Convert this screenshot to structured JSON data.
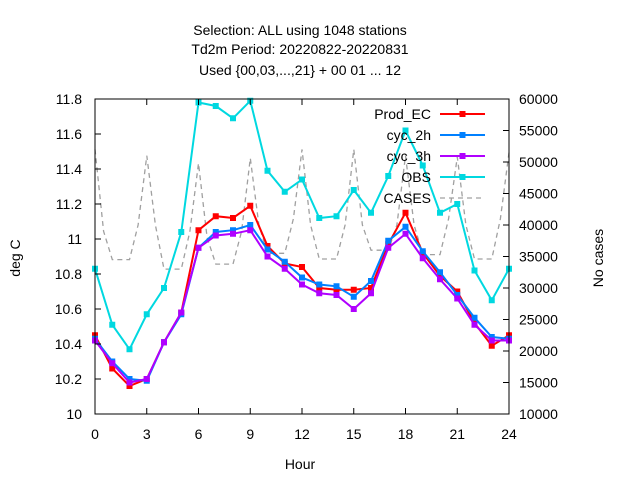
{
  "chart_data": {
    "type": "line",
    "title_lines": [
      "Selection: ALL using  1048 stations",
      "Td2m   Period: 20220822-20220831",
      "Used {00,03,...,21} + 00 01 ... 12"
    ],
    "xlabel": "Hour",
    "ylabel": "deg C",
    "y2label": "No cases",
    "xlim": [
      0,
      24
    ],
    "ylim": [
      10,
      11.8
    ],
    "y2lim": [
      10000,
      60000
    ],
    "x_ticks": [
      0,
      3,
      6,
      9,
      12,
      15,
      18,
      21,
      24
    ],
    "x_tick_labels": [
      "0",
      "3",
      "6",
      "9",
      "12",
      "15",
      "18",
      "21",
      "24"
    ],
    "y_ticks": [
      10,
      10.2,
      10.4,
      10.6,
      10.8,
      11,
      11.2,
      11.4,
      11.6,
      11.8
    ],
    "y_tick_labels": [
      "10",
      "10.2",
      "10.4",
      "10.6",
      "10.8",
      "11",
      "11.2",
      "11.4",
      "11.6",
      "11.8"
    ],
    "y2_ticks": [
      10000,
      15000,
      20000,
      25000,
      30000,
      35000,
      40000,
      45000,
      50000,
      55000,
      60000
    ],
    "y2_tick_labels": [
      "10000",
      "15000",
      "20000",
      "25000",
      "30000",
      "35000",
      "40000",
      "45000",
      "50000",
      "55000",
      "60000"
    ],
    "grid": false,
    "legend_position": "top-right",
    "x": [
      0,
      1,
      2,
      3,
      4,
      5,
      6,
      7,
      8,
      9,
      10,
      11,
      12,
      13,
      14,
      15,
      16,
      17,
      18,
      19,
      20,
      21,
      22,
      23,
      24
    ],
    "series": [
      {
        "name": "Prod_EC",
        "color": "#ff0000",
        "marker": "square",
        "axis": "left",
        "values": [
          10.45,
          10.26,
          10.16,
          10.2,
          10.41,
          10.58,
          11.05,
          11.13,
          11.12,
          11.19,
          10.96,
          10.86,
          10.84,
          10.72,
          10.71,
          10.71,
          10.72,
          10.97,
          11.15,
          10.92,
          10.79,
          10.7,
          10.52,
          10.39,
          10.45
        ]
      },
      {
        "name": "cyc_2h",
        "color": "#0080ff",
        "marker": "square",
        "axis": "left",
        "values": [
          10.43,
          10.3,
          10.2,
          10.19,
          10.41,
          10.57,
          10.95,
          11.04,
          11.05,
          11.08,
          10.94,
          10.87,
          10.78,
          10.74,
          10.73,
          10.67,
          10.76,
          10.99,
          11.07,
          10.93,
          10.81,
          10.68,
          10.55,
          10.44,
          10.43
        ]
      },
      {
        "name": "cyc_3h",
        "color": "#b000ff",
        "marker": "square",
        "axis": "left",
        "values": [
          10.42,
          10.29,
          10.18,
          10.2,
          10.41,
          10.58,
          10.95,
          11.02,
          11.03,
          11.05,
          10.9,
          10.83,
          10.74,
          10.69,
          10.68,
          10.6,
          10.69,
          10.95,
          11.03,
          10.89,
          10.77,
          10.66,
          10.51,
          10.42,
          10.42
        ]
      },
      {
        "name": "OBS",
        "color": "#00d8e0",
        "marker": "square",
        "axis": "left",
        "values": [
          10.83,
          10.51,
          10.37,
          10.57,
          10.72,
          11.04,
          11.78,
          11.76,
          11.69,
          11.79,
          11.39,
          11.27,
          11.34,
          11.12,
          11.13,
          11.28,
          11.15,
          11.36,
          11.62,
          11.42,
          11.15,
          11.2,
          10.82,
          10.65,
          10.83
        ]
      },
      {
        "name": "CASES",
        "color": "#a0a0a0",
        "dashed": true,
        "axis": "right",
        "x": [
          0,
          0.5,
          1,
          1.5,
          2,
          2.5,
          3,
          3.5,
          4,
          4.5,
          5,
          5.5,
          6,
          6.5,
          7,
          7.5,
          8,
          8.5,
          9,
          9.5,
          10,
          10.5,
          11,
          11.5,
          12,
          12.5,
          13,
          13.5,
          14,
          14.5,
          15,
          15.5,
          16,
          16.5,
          17,
          17.5,
          18,
          18.5,
          19,
          19.5,
          20,
          20.5,
          21,
          21.5,
          22,
          22.5,
          23,
          23.5,
          24
        ],
        "values": [
          52000,
          39000,
          34500,
          34500,
          34500,
          40000,
          51000,
          40000,
          33000,
          33000,
          33000,
          39000,
          49800,
          38000,
          33800,
          33800,
          33800,
          39000,
          50600,
          40000,
          35500,
          35500,
          35500,
          41000,
          52000,
          40000,
          34600,
          34600,
          34600,
          40000,
          52000,
          40000,
          36000,
          36000,
          36000,
          40000,
          51000,
          40000,
          35300,
          35300,
          35300,
          41000,
          50800,
          40000,
          34600,
          34600,
          34600,
          41000,
          51500
        ]
      }
    ]
  }
}
